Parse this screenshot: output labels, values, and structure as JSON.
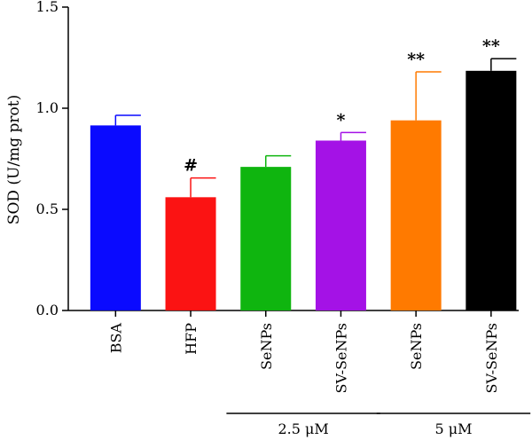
{
  "chart_data": {
    "type": "bar",
    "ylabel": "SOD (U/mg prot)",
    "xlabel": "",
    "ylim": [
      0,
      1.5
    ],
    "yticks": [
      0.0,
      0.5,
      1.0,
      1.5
    ],
    "ytick_labels": [
      "0.0",
      "0.5",
      "1.0",
      "1.5"
    ],
    "categories": [
      "BSA",
      "HFP",
      "SeNPs",
      "SV-SeNPs",
      "SeNPs",
      "SV-SeNPs"
    ],
    "values": [
      0.915,
      0.56,
      0.71,
      0.84,
      0.94,
      1.185
    ],
    "errors": [
      0.05,
      0.095,
      0.055,
      0.04,
      0.24,
      0.06
    ],
    "annotations": [
      "",
      "#",
      "",
      "*",
      "**",
      "**"
    ],
    "colors": [
      "#0a0aff",
      "#fb1313",
      "#0fb50f",
      "#a412e6",
      "#ff7a00",
      "#000000"
    ],
    "groups": [
      {
        "label": "2.5 μM",
        "start_index": 2,
        "end_index": 3
      },
      {
        "label": "5 μM",
        "start_index": 4,
        "end_index": 5
      }
    ],
    "grid": false,
    "legend": "none"
  }
}
